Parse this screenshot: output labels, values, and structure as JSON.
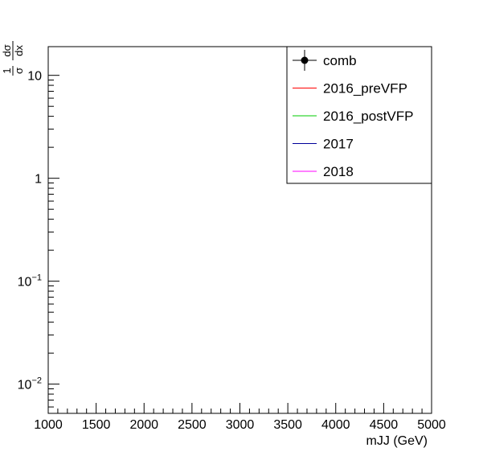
{
  "chart_data": {
    "type": "line",
    "xlabel": "mJJ (GeV)",
    "ylabel_fraction": {
      "numerator_1": "1",
      "denominator_1": "σ",
      "numerator_2": "dσ",
      "denominator_2": "dx"
    },
    "x_range": [
      1000,
      5000
    ],
    "x_ticks": [
      {
        "value": 1000,
        "label": "1000"
      },
      {
        "value": 1500,
        "label": "1500"
      },
      {
        "value": 2000,
        "label": "2000"
      },
      {
        "value": 2500,
        "label": "2500"
      },
      {
        "value": 3000,
        "label": "3000"
      },
      {
        "value": 3500,
        "label": "3500"
      },
      {
        "value": 4000,
        "label": "4000"
      },
      {
        "value": 4500,
        "label": "4500"
      },
      {
        "value": 5000,
        "label": "5000"
      }
    ],
    "y_scale": "log",
    "y_range": [
      0.0052,
      19
    ],
    "y_ticks": [
      {
        "value": 10,
        "base": "10",
        "exp": ""
      },
      {
        "value": 1,
        "base": "1",
        "exp": ""
      },
      {
        "value": 0.1,
        "base": "10",
        "exp": "−1"
      },
      {
        "value": 0.01,
        "base": "10",
        "exp": "−2"
      }
    ],
    "legend_position": "top-right",
    "series": [
      {
        "name": "comb",
        "color": "#000000",
        "marker": "circle-errorbar",
        "points": []
      },
      {
        "name": "2016_preVFP",
        "color": "#ff0000",
        "marker": "line",
        "points": []
      },
      {
        "name": "2016_postVFP",
        "color": "#00cc00",
        "marker": "line",
        "points": []
      },
      {
        "name": "2017",
        "color": "#000099",
        "marker": "line",
        "points": []
      },
      {
        "name": "2018",
        "color": "#ff00ff",
        "marker": "line",
        "points": []
      }
    ]
  }
}
